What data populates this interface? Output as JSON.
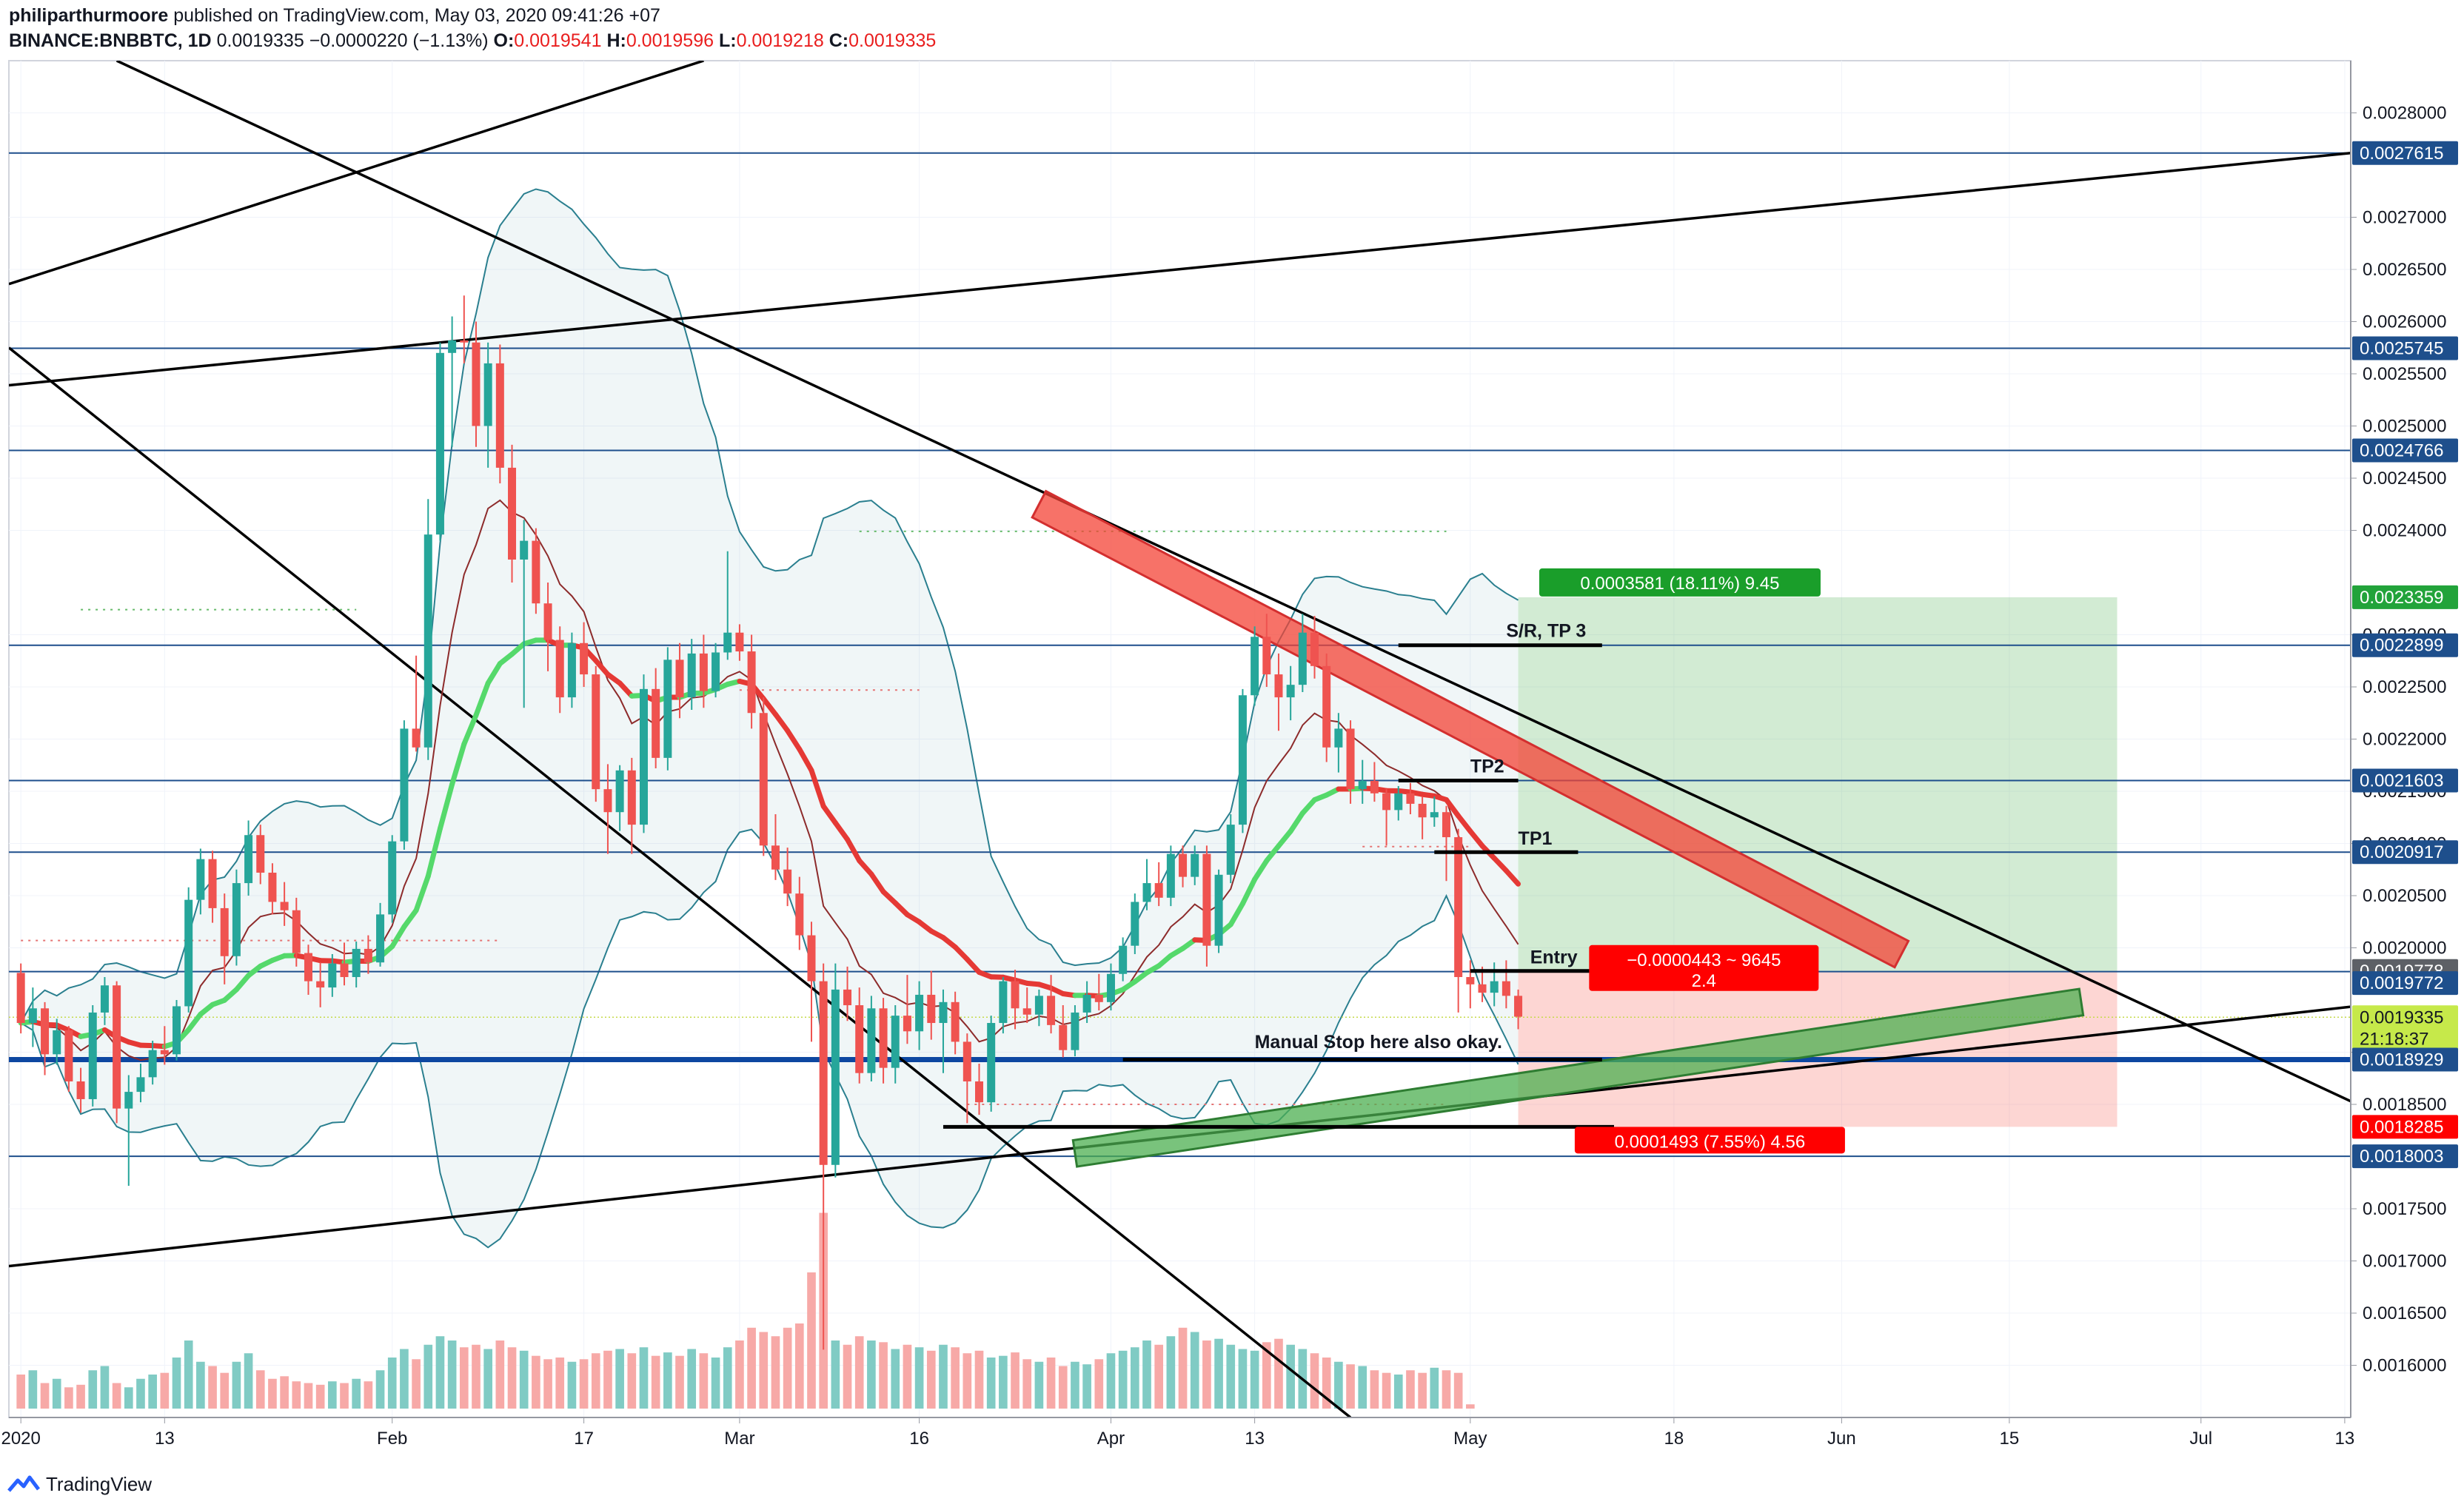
{
  "header": {
    "publisher": "philiparthurmoore",
    "published_text": "published on TradingView.com, May 03, 2020 09:41:26 +07",
    "symbol": "BINANCE:BNBBTC, 1D",
    "last": "0.0019335",
    "change": "−0.0000220 (−1.13%)",
    "o_label": "O:",
    "o": "0.0019541",
    "h_label": "H:",
    "h": "0.0019596",
    "l_label": "L:",
    "l": "0.0019218",
    "c_label": "C:",
    "c": "0.0019335"
  },
  "footer": {
    "brand": "TradingView"
  },
  "colors": {
    "up": "#26a69a",
    "down": "#ef5350",
    "hline": "#1e4f8c",
    "bb": "#2a7f8f",
    "ema_fast": "#e53935",
    "ema_slow": "#55d96b"
  },
  "chart_data": {
    "type": "candlestick",
    "ylim": [
      0.00155,
      0.00285
    ],
    "y_ticks": [
      "0.0016000",
      "0.0016500",
      "0.0017000",
      "0.0017500",
      "0.0018500",
      "0.0019000",
      "0.0020000",
      "0.0020500",
      "0.0021000",
      "0.0021500",
      "0.0022000",
      "0.0022500",
      "0.0023000",
      "0.0024000",
      "0.0024500",
      "0.0025000",
      "0.0025500",
      "0.0026000",
      "0.0026500",
      "0.0027000",
      "0.0028000"
    ],
    "x_ticks": [
      {
        "label": "2020",
        "day": 0
      },
      {
        "label": "13",
        "day": 12
      },
      {
        "label": "Feb",
        "day": 31
      },
      {
        "label": "17",
        "day": 47
      },
      {
        "label": "Mar",
        "day": 60
      },
      {
        "label": "16",
        "day": 75
      },
      {
        "label": "Apr",
        "day": 91
      },
      {
        "label": "13",
        "day": 103
      },
      {
        "label": "May",
        "day": 121
      },
      {
        "label": "18",
        "day": 138
      },
      {
        "label": "Jun",
        "day": 152
      },
      {
        "label": "15",
        "day": 166
      },
      {
        "label": "Jul",
        "day": 182
      },
      {
        "label": "13",
        "day": 194
      }
    ],
    "x_range_days": [
      -1,
      194.5
    ],
    "ohlc": [
      [
        0.001976,
        0.001985,
        0.001918,
        0.001928
      ],
      [
        0.001928,
        0.001962,
        0.001905,
        0.001942
      ],
      [
        0.001942,
        0.001948,
        0.001878,
        0.001898
      ],
      [
        0.001898,
        0.001932,
        0.001888,
        0.001921
      ],
      [
        0.001921,
        0.001925,
        0.001862,
        0.001872
      ],
      [
        0.001872,
        0.001885,
        0.001842,
        0.001855
      ],
      [
        0.001855,
        0.001945,
        0.001848,
        0.001938
      ],
      [
        0.001938,
        0.001972,
        0.001926,
        0.001964
      ],
      [
        0.001964,
        0.001968,
        0.001832,
        0.001846
      ],
      [
        0.001846,
        0.001878,
        0.001772,
        0.001862
      ],
      [
        0.001862,
        0.001889,
        0.001852,
        0.001876
      ],
      [
        0.001876,
        0.001911,
        0.001869,
        0.001902
      ],
      [
        0.001902,
        0.001925,
        0.001888,
        0.001898
      ],
      [
        0.001898,
        0.00195,
        0.001892,
        0.001944
      ],
      [
        0.001944,
        0.002058,
        0.001938,
        0.002046
      ],
      [
        0.002046,
        0.002095,
        0.002032,
        0.002085
      ],
      [
        0.002085,
        0.002093,
        0.002024,
        0.002038
      ],
      [
        0.002038,
        0.002052,
        0.001965,
        0.001992
      ],
      [
        0.001992,
        0.002075,
        0.001983,
        0.002062
      ],
      [
        0.002062,
        0.002122,
        0.00205,
        0.002108
      ],
      [
        0.002108,
        0.002118,
        0.002061,
        0.002072
      ],
      [
        0.002072,
        0.002081,
        0.002032,
        0.002044
      ],
      [
        0.002044,
        0.002063,
        0.002021,
        0.002036
      ],
      [
        0.002036,
        0.002048,
        0.001982,
        0.001995
      ],
      [
        0.001995,
        0.002003,
        0.001955,
        0.001968
      ],
      [
        0.001968,
        0.001986,
        0.001943,
        0.001962
      ],
      [
        0.001962,
        0.001994,
        0.001953,
        0.001985
      ],
      [
        0.001985,
        0.002005,
        0.001964,
        0.001972
      ],
      [
        0.001972,
        0.002006,
        0.001962,
        0.001999
      ],
      [
        0.001999,
        0.002012,
        0.001975,
        0.001986
      ],
      [
        0.001986,
        0.002043,
        0.001982,
        0.002032
      ],
      [
        0.002032,
        0.002108,
        0.002024,
        0.002102
      ],
      [
        0.002102,
        0.002218,
        0.002094,
        0.00221
      ],
      [
        0.00221,
        0.00228,
        0.002188,
        0.002192
      ],
      [
        0.002192,
        0.00243,
        0.00218,
        0.002396
      ],
      [
        0.002396,
        0.00258,
        0.00239,
        0.00257
      ],
      [
        0.00257,
        0.002605,
        0.00248,
        0.002582
      ],
      [
        0.002582,
        0.002625,
        0.00256,
        0.00258
      ],
      [
        0.00258,
        0.0026,
        0.00248,
        0.0025
      ],
      [
        0.0025,
        0.00258,
        0.00246,
        0.00256
      ],
      [
        0.00256,
        0.002578,
        0.002445,
        0.00246
      ],
      [
        0.00246,
        0.002482,
        0.00235,
        0.002372
      ],
      [
        0.002372,
        0.00241,
        0.00223,
        0.00239
      ],
      [
        0.00239,
        0.002402,
        0.00232,
        0.00233
      ],
      [
        0.00233,
        0.00235,
        0.002265,
        0.002295
      ],
      [
        0.002295,
        0.002308,
        0.002225,
        0.00224
      ],
      [
        0.00224,
        0.002302,
        0.00223,
        0.002292
      ],
      [
        0.002292,
        0.002312,
        0.00225,
        0.002262
      ],
      [
        0.002262,
        0.00227,
        0.00214,
        0.002152
      ],
      [
        0.002152,
        0.002176,
        0.00209,
        0.00213
      ],
      [
        0.00213,
        0.002175,
        0.002112,
        0.00217
      ],
      [
        0.00217,
        0.002182,
        0.00209,
        0.002118
      ],
      [
        0.002118,
        0.002262,
        0.00211,
        0.002248
      ],
      [
        0.002248,
        0.002268,
        0.002172,
        0.002182
      ],
      [
        0.002182,
        0.002288,
        0.00217,
        0.002276
      ],
      [
        0.002276,
        0.002292,
        0.00222,
        0.00224
      ],
      [
        0.00224,
        0.002296,
        0.002228,
        0.002282
      ],
      [
        0.002282,
        0.0023,
        0.00223,
        0.002246
      ],
      [
        0.002246,
        0.002292,
        0.00224,
        0.002283
      ],
      [
        0.002283,
        0.00238,
        0.002276,
        0.002302
      ],
      [
        0.002302,
        0.00231,
        0.002275,
        0.002284
      ],
      [
        0.002284,
        0.0023,
        0.00221,
        0.002225
      ],
      [
        0.002225,
        0.00224,
        0.002088,
        0.002098
      ],
      [
        0.002098,
        0.002128,
        0.002065,
        0.002075
      ],
      [
        0.002075,
        0.002096,
        0.00204,
        0.002052
      ],
      [
        0.002052,
        0.002068,
        0.001998,
        0.002012
      ],
      [
        0.002012,
        0.002025,
        0.00191,
        0.001968
      ],
      [
        0.001968,
        0.001985,
        0.001615,
        0.001792
      ],
      [
        0.001792,
        0.001985,
        0.00178,
        0.00196
      ],
      [
        0.00196,
        0.001982,
        0.00193,
        0.001945
      ],
      [
        0.001945,
        0.001962,
        0.00187,
        0.00188
      ],
      [
        0.00188,
        0.001954,
        0.001872,
        0.001942
      ],
      [
        0.001942,
        0.001952,
        0.00187,
        0.001885
      ],
      [
        0.001885,
        0.001945,
        0.00187,
        0.001935
      ],
      [
        0.001935,
        0.001974,
        0.001908,
        0.00192
      ],
      [
        0.00192,
        0.001968,
        0.001902,
        0.001955
      ],
      [
        0.001955,
        0.001978,
        0.001912,
        0.001928
      ],
      [
        0.001928,
        0.00196,
        0.00188,
        0.001948
      ],
      [
        0.001948,
        0.001958,
        0.001898,
        0.00191
      ],
      [
        0.00191,
        0.001918,
        0.001832,
        0.001872
      ],
      [
        0.001872,
        0.001889,
        0.00184,
        0.001852
      ],
      [
        0.001852,
        0.001935,
        0.001843,
        0.001928
      ],
      [
        0.001928,
        0.001972,
        0.001918,
        0.001968
      ],
      [
        0.001968,
        0.001979,
        0.001922,
        0.001942
      ],
      [
        0.001942,
        0.001962,
        0.001928,
        0.001936
      ],
      [
        0.001936,
        0.00196,
        0.001925,
        0.001954
      ],
      [
        0.001954,
        0.001974,
        0.001918,
        0.001926
      ],
      [
        0.001926,
        0.001945,
        0.001895,
        0.001902
      ],
      [
        0.001902,
        0.001945,
        0.001896,
        0.001938
      ],
      [
        0.001938,
        0.001968,
        0.001928,
        0.001955
      ],
      [
        0.001955,
        0.001975,
        0.00194,
        0.001948
      ],
      [
        0.001948,
        0.001985,
        0.00194,
        0.001975
      ],
      [
        0.001975,
        0.00201,
        0.001968,
        0.002002
      ],
      [
        0.002002,
        0.002052,
        0.001994,
        0.002044
      ],
      [
        0.002044,
        0.002085,
        0.002036,
        0.002062
      ],
      [
        0.002062,
        0.002082,
        0.00204,
        0.002048
      ],
      [
        0.002048,
        0.002098,
        0.00204,
        0.00209
      ],
      [
        0.00209,
        0.002098,
        0.002058,
        0.002068
      ],
      [
        0.002068,
        0.002098,
        0.00206,
        0.00209
      ],
      [
        0.00209,
        0.002098,
        0.001982,
        0.002002
      ],
      [
        0.002002,
        0.002075,
        0.001995,
        0.00207
      ],
      [
        0.00207,
        0.002128,
        0.002062,
        0.002118
      ],
      [
        0.002118,
        0.002248,
        0.00211,
        0.002242
      ],
      [
        0.002242,
        0.002308,
        0.002232,
        0.002298
      ],
      [
        0.002298,
        0.00232,
        0.00225,
        0.002262
      ],
      [
        0.002262,
        0.002282,
        0.002208,
        0.00224
      ],
      [
        0.00224,
        0.00227,
        0.002218,
        0.002252
      ],
      [
        0.002252,
        0.00232,
        0.002245,
        0.002302
      ],
      [
        0.002302,
        0.002318,
        0.002258,
        0.00227
      ],
      [
        0.00227,
        0.002282,
        0.002178,
        0.002192
      ],
      [
        0.002192,
        0.002225,
        0.002168,
        0.00221
      ],
      [
        0.00221,
        0.002218,
        0.002138,
        0.002152
      ],
      [
        0.002152,
        0.00218,
        0.002138,
        0.00216
      ],
      [
        0.00216,
        0.002178,
        0.00214,
        0.002148
      ],
      [
        0.002148,
        0.002152,
        0.002098,
        0.002132
      ],
      [
        0.002132,
        0.002155,
        0.002122,
        0.002148
      ],
      [
        0.002148,
        0.002158,
        0.002128,
        0.002138
      ],
      [
        0.002138,
        0.002145,
        0.002104,
        0.002125
      ],
      [
        0.002125,
        0.002145,
        0.002116,
        0.00213
      ],
      [
        0.00213,
        0.002136,
        0.002064,
        0.002106
      ],
      [
        0.002106,
        0.002114,
        0.001938,
        0.001972
      ],
      [
        0.001972,
        0.001988,
        0.001942,
        0.001965
      ],
      [
        0.001965,
        0.001982,
        0.001948,
        0.001957
      ],
      [
        0.001957,
        0.001986,
        0.001944,
        0.001968
      ],
      [
        0.001968,
        0.001988,
        0.001942,
        0.001954
      ],
      [
        0.001954,
        0.00196,
        0.001922,
        0.001934
      ]
    ],
    "volume_rel": [
      0.4,
      0.45,
      0.3,
      0.35,
      0.25,
      0.28,
      0.45,
      0.5,
      0.3,
      0.25,
      0.35,
      0.4,
      0.42,
      0.6,
      0.8,
      0.55,
      0.5,
      0.42,
      0.55,
      0.65,
      0.45,
      0.35,
      0.38,
      0.32,
      0.3,
      0.28,
      0.32,
      0.3,
      0.35,
      0.32,
      0.45,
      0.6,
      0.7,
      0.58,
      0.75,
      0.85,
      0.8,
      0.72,
      0.75,
      0.7,
      0.8,
      0.72,
      0.68,
      0.62,
      0.58,
      0.6,
      0.55,
      0.58,
      0.65,
      0.68,
      0.7,
      0.65,
      0.72,
      0.62,
      0.66,
      0.62,
      0.7,
      0.65,
      0.6,
      0.72,
      0.8,
      0.95,
      0.9,
      0.85,
      0.95,
      1.0,
      1.6,
      2.3,
      0.8,
      0.75,
      0.85,
      0.8,
      0.78,
      0.7,
      0.75,
      0.72,
      0.68,
      0.75,
      0.72,
      0.65,
      0.68,
      0.6,
      0.62,
      0.66,
      0.58,
      0.55,
      0.6,
      0.5,
      0.55,
      0.52,
      0.58,
      0.65,
      0.68,
      0.72,
      0.8,
      0.75,
      0.85,
      0.95,
      0.9,
      0.8,
      0.82,
      0.75,
      0.7,
      0.68,
      0.78,
      0.82,
      0.75,
      0.7,
      0.65,
      0.6,
      0.55,
      0.52,
      0.5,
      0.45,
      0.42,
      0.4,
      0.45,
      0.42,
      0.48,
      0.45,
      0.42,
      0.05
    ],
    "h_levels": [
      "0.0027615",
      "0.0025745",
      "0.0024766",
      "0.0022899",
      "0.0021603",
      "0.0020917",
      "0.0019772",
      "0.0018929",
      "0.0018003"
    ],
    "price_tags": [
      {
        "value": "0.0027615",
        "price": 0.0027615,
        "color": "#1e4f8c",
        "text_color": "#ffffff"
      },
      {
        "value": "0.0025745",
        "price": 0.0025745,
        "color": "#1e4f8c",
        "text_color": "#ffffff"
      },
      {
        "value": "0.0024766",
        "price": 0.0024766,
        "color": "#1e4f8c",
        "text_color": "#ffffff"
      },
      {
        "value": "0.0023359",
        "price": 0.0023359,
        "color": "#22a33a",
        "text_color": "#ffffff"
      },
      {
        "value": "0.0022899",
        "price": 0.0022899,
        "color": "#1e4f8c",
        "text_color": "#ffffff"
      },
      {
        "value": "0.0021603",
        "price": 0.0021603,
        "color": "#1e4f8c",
        "text_color": "#ffffff"
      },
      {
        "value": "0.0020917",
        "price": 0.0020917,
        "color": "#1e4f8c",
        "text_color": "#ffffff"
      },
      {
        "value": "0.0019778",
        "price": 0.0019778,
        "color": "#5d6066",
        "text_color": "#ffffff"
      },
      {
        "value": "0.0019772",
        "price": 0.0019662,
        "color": "#1e4f8c",
        "text_color": "#ffffff"
      },
      {
        "value": "0.0019335",
        "price": 0.0019335,
        "color": "#c6e94a",
        "text_color": "#131722"
      },
      {
        "value": "21:18:37",
        "price": 0.0019128,
        "color": "#c6e94a",
        "text_color": "#131722"
      },
      {
        "value": "0.0018929",
        "price": 0.0018929,
        "color": "#1e4f8c",
        "text_color": "#ffffff"
      },
      {
        "value": "0.0018285",
        "price": 0.0018285,
        "color": "#ff0000",
        "text_color": "#ffffff"
      },
      {
        "value": "0.0018003",
        "price": 0.0018003,
        "color": "#1e4f8c",
        "text_color": "#ffffff"
      }
    ],
    "position": {
      "entry": 0.0019778,
      "target": 0.0023359,
      "stop": 0.0018285,
      "start_day": 125,
      "end_day": 175,
      "target_label": "0.0003581 (18.11%) 9.45",
      "stop_label": "0.0001493 (7.55%) 4.56",
      "pnl_line1": "−0.0000443 ~ 9645",
      "pnl_line2": "2.4"
    },
    "annotations": [
      {
        "text": "S/R, TP 3",
        "day": 124,
        "price": 0.002298
      },
      {
        "text": "TP2",
        "day": 121,
        "price": 0.002168
      },
      {
        "text": "TP1",
        "day": 125,
        "price": 0.002099
      },
      {
        "text": "Entry",
        "day": 126,
        "price": 0.001985
      },
      {
        "text": "Manual Stop here also okay.",
        "day": 103,
        "price": 0.001904
      }
    ],
    "segments": [
      {
        "name": "Entry level",
        "day0": 121,
        "p0": 0.0019778,
        "day1": 133,
        "p1": 0.0019778
      },
      {
        "name": "TP1 level",
        "day0": 118,
        "p0": 0.0020917,
        "day1": 130,
        "p1": 0.0020917
      },
      {
        "name": "TP2 level",
        "day0": 115,
        "p0": 0.0021603,
        "day1": 125,
        "p1": 0.0021603
      },
      {
        "name": "S/R TP3 level",
        "day0": 115,
        "p0": 0.0022899,
        "day1": 132,
        "p1": 0.0022899
      },
      {
        "name": "Manual stop level",
        "day0": 92,
        "p0": 0.0018929,
        "day1": 132,
        "p1": 0.0018929
      },
      {
        "name": "Low stop level",
        "day0": 77,
        "p0": 0.0018285,
        "day1": 133,
        "p1": 0.0018285
      }
    ]
  }
}
